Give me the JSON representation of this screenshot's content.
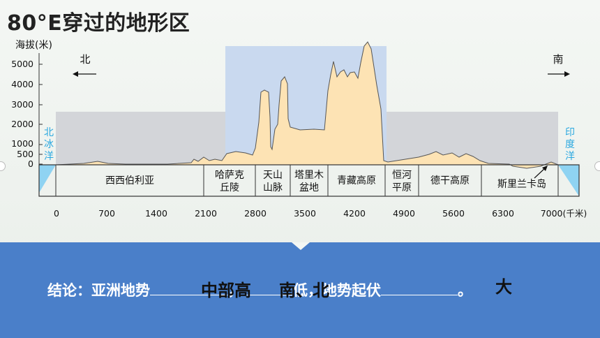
{
  "title": "80°E穿过的地形区",
  "y_axis": {
    "label": "海拔(米)",
    "ticks": [
      "5000",
      "4000",
      "3000",
      "2000",
      "1000",
      "500",
      "0"
    ]
  },
  "x_axis": {
    "ticks": [
      "0",
      "700",
      "1400",
      "2100",
      "2800",
      "3500",
      "4200",
      "4900",
      "5600",
      "6300",
      "7000(千米)"
    ]
  },
  "directions": {
    "north": "北",
    "south": "南"
  },
  "oceans": {
    "north": "北冰洋",
    "south": "印度洋"
  },
  "regions": [
    {
      "name": "西西伯利亚",
      "lines": [
        "西西伯利亚"
      ]
    },
    {
      "name": "哈萨克丘陵",
      "lines": [
        "哈萨克",
        "丘陵"
      ]
    },
    {
      "name": "天山山脉",
      "lines": [
        "天山",
        "山脉"
      ]
    },
    {
      "name": "塔里木盆地",
      "lines": [
        "塔里木",
        "盆地"
      ]
    },
    {
      "name": "青藏高原",
      "lines": [
        "青藏高原"
      ]
    },
    {
      "name": "恒河平原",
      "lines": [
        "恒河",
        "平原"
      ]
    },
    {
      "name": "德干高原",
      "lines": [
        "德干高原"
      ]
    },
    {
      "name": "斯里兰卡岛",
      "lines": [
        "斯里兰卡岛"
      ]
    }
  ],
  "conclusion": {
    "prefix": "结论：亚洲地势",
    "sep1": "，",
    "mid": "低，地势起伏",
    "end": "。",
    "answer1": "中部高",
    "answer2": "南、北",
    "answer3": "大"
  },
  "colors": {
    "terrain": "#fde3b4",
    "highlight_blue": "#c9d9ef",
    "grey_band": "#d3d5d9",
    "ocean": "#8fd3f2",
    "ocean_text": "#2aa8e0",
    "panel": "#4a7fc9"
  }
}
